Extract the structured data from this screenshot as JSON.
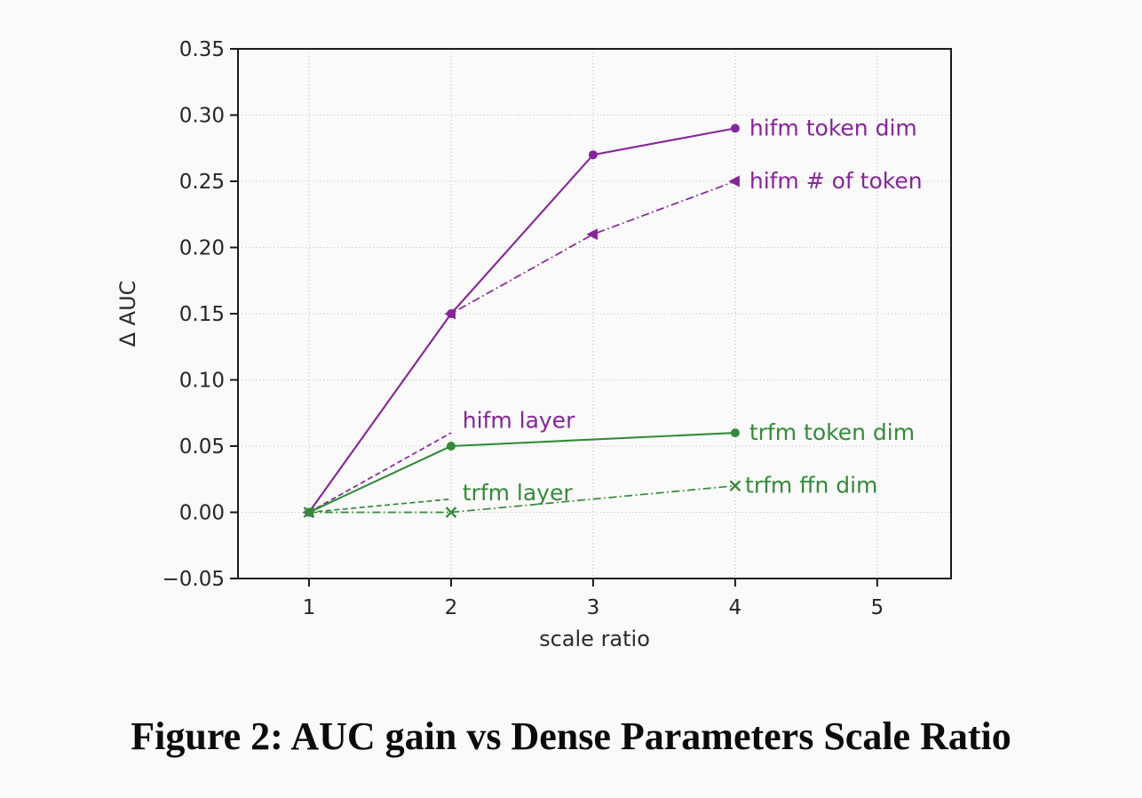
{
  "caption": "Figure 2: AUC gain vs Dense Parameters Scale Ratio",
  "chart_data": {
    "type": "line",
    "title": "",
    "xlabel": "scale ratio",
    "ylabel": "Δ AUC",
    "xlim": [
      0.5,
      5.52
    ],
    "ylim": [
      -0.05,
      0.35
    ],
    "xticks": [
      1,
      2,
      3,
      4,
      5
    ],
    "xtick_labels": [
      "1",
      "2",
      "3",
      "4",
      "5"
    ],
    "yticks": [
      -0.05,
      0.0,
      0.05,
      0.1,
      0.15,
      0.2,
      0.25,
      0.3,
      0.35
    ],
    "ytick_labels": [
      "−0.05",
      "0.00",
      "0.05",
      "0.10",
      "0.15",
      "0.20",
      "0.25",
      "0.30",
      "0.35"
    ],
    "grid": true,
    "grid_style": "dotted",
    "legend_position": "inline-annotations",
    "colors": {
      "hifm": "#86249c",
      "trfm": "#338a38",
      "axis": "#1a1a1a",
      "grid": "#c6c6c6",
      "tick_text": "#262626"
    },
    "series": [
      {
        "name": "hifm token dim",
        "color": "#86249c",
        "linestyle": "solid",
        "marker": "circle",
        "x": [
          1,
          2,
          3,
          4
        ],
        "y": [
          0.0,
          0.15,
          0.27,
          0.29
        ],
        "label": {
          "text": "hifm token dim",
          "x": 4.1,
          "y": 0.29
        }
      },
      {
        "name": "hifm # of token",
        "color": "#86249c",
        "linestyle": "dashdot",
        "marker": "triangle-left",
        "x": [
          1,
          2,
          3,
          4
        ],
        "y": [
          0.0,
          0.15,
          0.21,
          0.25
        ],
        "label": {
          "text": "hifm # of token",
          "x": 4.1,
          "y": 0.25
        }
      },
      {
        "name": "hifm layer",
        "color": "#86249c",
        "linestyle": "dashed",
        "marker": "none",
        "x": [
          1,
          2
        ],
        "y": [
          0.0,
          0.06
        ],
        "label": {
          "text": "hifm layer",
          "x": 2.08,
          "y": 0.069
        }
      },
      {
        "name": "trfm token dim",
        "color": "#338a38",
        "linestyle": "solid",
        "marker": "circle",
        "x": [
          1,
          2,
          4
        ],
        "y": [
          0.0,
          0.05,
          0.06
        ],
        "label": {
          "text": "trfm token dim",
          "x": 4.1,
          "y": 0.06
        }
      },
      {
        "name": "trfm layer",
        "color": "#338a38",
        "linestyle": "dashed",
        "marker": "none",
        "x": [
          1,
          2
        ],
        "y": [
          0.0,
          0.01
        ],
        "label": {
          "text": "trfm layer",
          "x": 2.08,
          "y": 0.0145
        }
      },
      {
        "name": "trfm ffn dim",
        "color": "#338a38",
        "linestyle": "dashdot",
        "marker": "x",
        "x": [
          1,
          2,
          4
        ],
        "y": [
          0.0,
          0.0,
          0.02
        ],
        "label": {
          "text": "trfm ffn dim",
          "x": 4.07,
          "y": 0.02
        }
      }
    ]
  }
}
